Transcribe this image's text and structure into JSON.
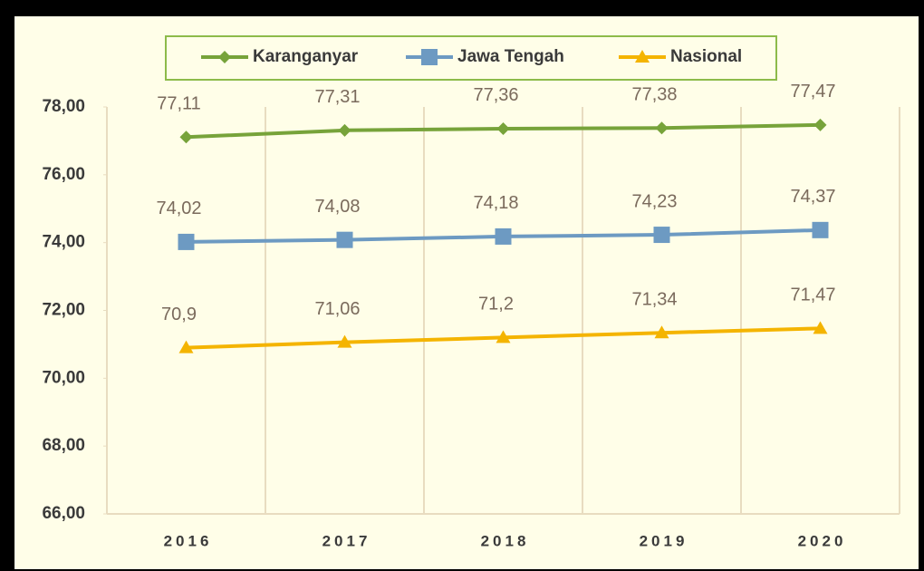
{
  "chart_data": {
    "type": "line",
    "categories": [
      "2016",
      "2017",
      "2018",
      "2019",
      "2020"
    ],
    "series": [
      {
        "name": "Karanganyar",
        "color": "#77a33a",
        "marker": "diamond",
        "values": [
          77.11,
          77.31,
          77.36,
          77.38,
          77.47
        ],
        "value_labels": [
          "77,11",
          "77,31",
          "77,36",
          "77,38",
          "77,47"
        ]
      },
      {
        "name": "Jawa Tengah",
        "color": "#6d9ac2",
        "marker": "square",
        "values": [
          74.02,
          74.08,
          74.18,
          74.23,
          74.37
        ],
        "value_labels": [
          "74,02",
          "74,08",
          "74,18",
          "74,23",
          "74,37"
        ]
      },
      {
        "name": "Nasional",
        "color": "#f4b400",
        "marker": "triangle",
        "values": [
          70.9,
          71.06,
          71.2,
          71.34,
          71.47
        ],
        "value_labels": [
          "70,9",
          "71,06",
          "71,2",
          "71,34",
          "71,47"
        ]
      }
    ],
    "ylim": [
      66,
      78
    ],
    "yticks": [
      {
        "value": 66,
        "label": "66,00"
      },
      {
        "value": 68,
        "label": "68,00"
      },
      {
        "value": 70,
        "label": "70,00"
      },
      {
        "value": 72,
        "label": "72,00"
      },
      {
        "value": 74,
        "label": "74,00"
      },
      {
        "value": 76,
        "label": "76,00"
      },
      {
        "value": 78,
        "label": "78,00"
      }
    ],
    "grid": "vertical",
    "legend": "top"
  }
}
